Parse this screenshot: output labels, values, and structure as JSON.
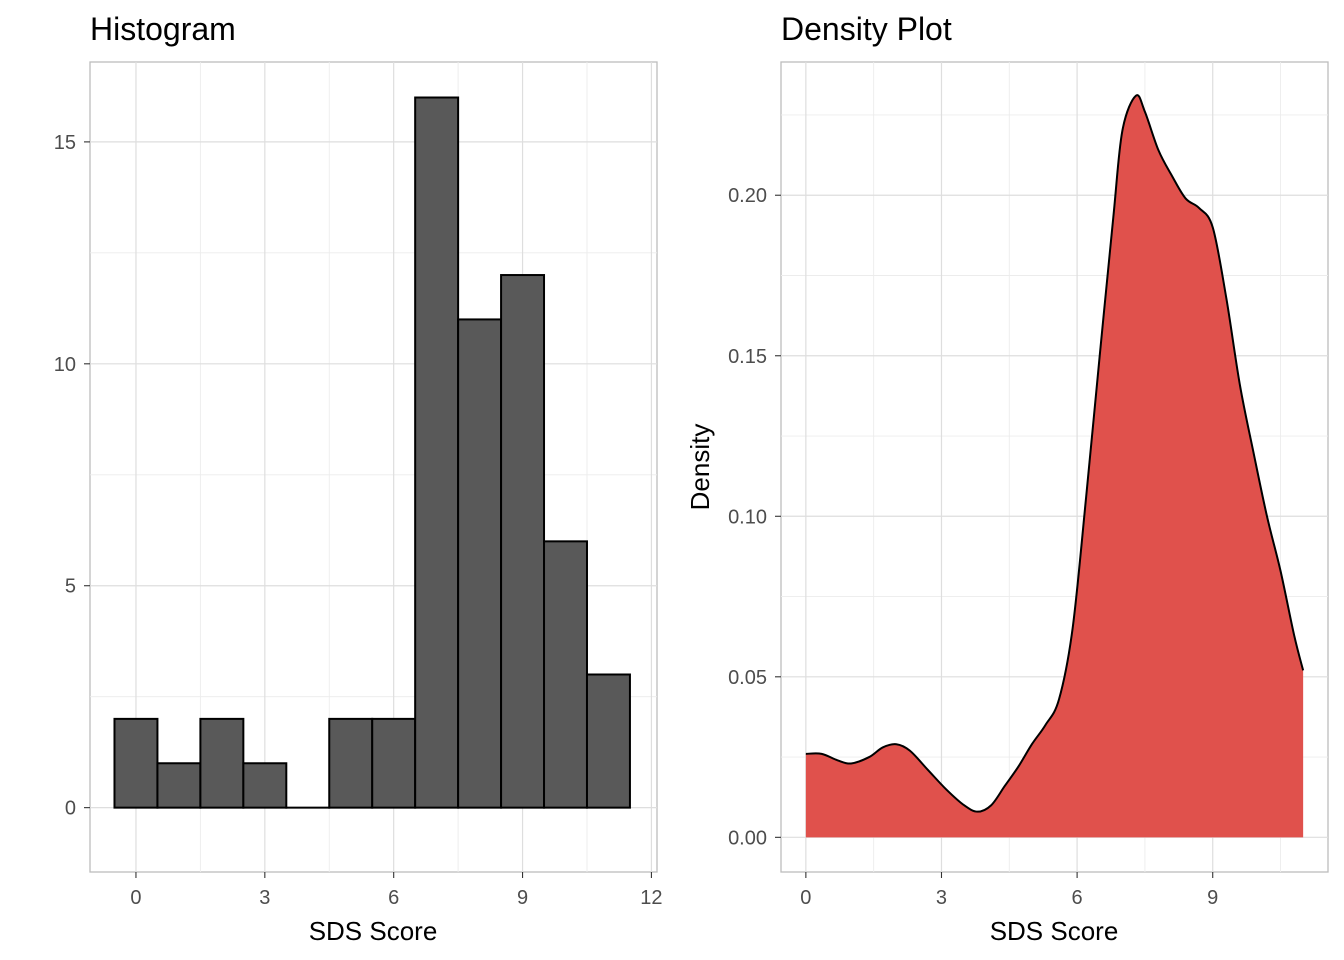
{
  "chart_data": [
    {
      "type": "bar",
      "title": "Histogram",
      "xlabel": "SDS Score",
      "ylabel": "",
      "bin_width": 1,
      "bins": [
        {
          "x": 0,
          "count": 2
        },
        {
          "x": 1,
          "count": 1
        },
        {
          "x": 2,
          "count": 2
        },
        {
          "x": 3,
          "count": 1
        },
        {
          "x": 4,
          "count": 0
        },
        {
          "x": 5,
          "count": 2
        },
        {
          "x": 6,
          "count": 2
        },
        {
          "x": 7,
          "count": 16
        },
        {
          "x": 8,
          "count": 11
        },
        {
          "x": 9,
          "count": 12
        },
        {
          "x": 10,
          "count": 6
        },
        {
          "x": 11,
          "count": 3
        }
      ],
      "xlim": [
        -1.07,
        12.13
      ],
      "ylim": [
        -1.45,
        16.8
      ],
      "xticks": [
        0,
        3,
        6,
        9,
        12
      ],
      "yticks": [
        0,
        5,
        10,
        15
      ],
      "grid": true,
      "fill_color": "#595959",
      "stroke_color": "#000000"
    },
    {
      "type": "area",
      "title": "Density Plot",
      "xlabel": "SDS Score",
      "ylabel": "Density",
      "x": [
        0,
        0.35,
        0.7,
        1.0,
        1.4,
        1.7,
        2.0,
        2.3,
        2.7,
        3.1,
        3.5,
        3.8,
        4.1,
        4.4,
        4.7,
        5.0,
        5.3,
        5.6,
        5.9,
        6.2,
        6.5,
        6.8,
        7.0,
        7.3,
        7.5,
        7.8,
        8.1,
        8.4,
        8.7,
        9.0,
        9.3,
        9.6,
        9.9,
        10.2,
        10.5,
        10.8,
        11.0
      ],
      "y": [
        0.026,
        0.026,
        0.024,
        0.023,
        0.025,
        0.028,
        0.029,
        0.027,
        0.021,
        0.015,
        0.01,
        0.008,
        0.01,
        0.016,
        0.022,
        0.029,
        0.035,
        0.043,
        0.065,
        0.106,
        0.15,
        0.193,
        0.22,
        0.231,
        0.226,
        0.214,
        0.206,
        0.199,
        0.196,
        0.19,
        0.168,
        0.141,
        0.12,
        0.1,
        0.083,
        0.063,
        0.052
      ],
      "xlim": [
        -0.55,
        11.55
      ],
      "ylim": [
        -0.0108,
        0.2415
      ],
      "xticks": [
        0,
        3,
        6,
        9
      ],
      "yticks": [
        0.0,
        0.05,
        0.1,
        0.15,
        0.2
      ],
      "ytick_labels": [
        "0.00",
        "0.05",
        "0.10",
        "0.15",
        "0.20"
      ],
      "grid": true,
      "fill_color": "#e0514c",
      "stroke_color": "#000000"
    }
  ]
}
